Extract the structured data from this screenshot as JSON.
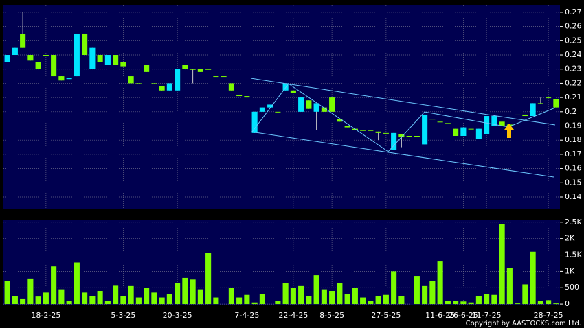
{
  "chart_data": {
    "type": "candlestick",
    "categories": [
      null,
      null,
      null,
      null,
      null,
      "18-2-25",
      null,
      null,
      null,
      null,
      null,
      null,
      null,
      null,
      null,
      "5-3-25",
      null,
      null,
      null,
      null,
      null,
      null,
      "20-3-25",
      null,
      null,
      null,
      null,
      null,
      null,
      null,
      null,
      "7-4-25",
      null,
      null,
      null,
      null,
      null,
      "22-4-25",
      null,
      null,
      null,
      null,
      "8-5-25",
      null,
      null,
      null,
      null,
      null,
      null,
      "27-5-25",
      null,
      null,
      null,
      null,
      null,
      null,
      "11-6-25",
      null,
      null,
      "26-6-25",
      null,
      null,
      "11-7-25",
      null,
      null,
      null,
      null,
      null,
      null,
      null,
      "28-7-25",
      null
    ],
    "open": [
      0.235,
      0.24,
      0.255,
      0.24,
      0.235,
      0.24,
      0.24,
      0.225,
      0.223,
      0.225,
      0.255,
      0.23,
      0.24,
      0.233,
      0.24,
      0.235,
      0.225,
      0.22,
      0.233,
      0.22,
      0.218,
      0.215,
      0.215,
      0.233,
      0.23,
      0.23,
      0.23,
      0.225,
      0.225,
      0.22,
      0.212,
      0.211,
      0.185,
      0.2,
      0.203,
      0.2,
      0.215,
      0.215,
      0.2,
      0.208,
      0.2,
      0.203,
      0.21,
      0.195,
      0.19,
      0.188,
      0.187,
      0.187,
      0.186,
      0.185,
      0.173,
      0.184,
      0.183,
      0.183,
      0.177,
      0.195,
      0.193,
      0.192,
      0.188,
      0.183,
      0.188,
      0.181,
      0.184,
      0.19,
      0.193,
      0.191,
      0.198,
      0.198,
      0.197,
      0.206,
      0.21,
      0.209
    ],
    "high": [
      0.24,
      0.245,
      0.27,
      0.24,
      0.235,
      0.24,
      0.24,
      0.225,
      0.224,
      0.255,
      0.255,
      0.245,
      0.24,
      0.24,
      0.24,
      0.235,
      0.225,
      0.22,
      0.233,
      0.22,
      0.218,
      0.22,
      0.23,
      0.233,
      0.23,
      0.23,
      0.23,
      0.225,
      0.225,
      0.22,
      0.212,
      0.211,
      0.2,
      0.203,
      0.205,
      0.2,
      0.22,
      0.215,
      0.21,
      0.208,
      0.206,
      0.203,
      0.21,
      0.195,
      0.19,
      0.188,
      0.187,
      0.187,
      0.186,
      0.185,
      0.185,
      0.184,
      0.183,
      0.183,
      0.198,
      0.195,
      0.193,
      0.192,
      0.188,
      0.189,
      0.188,
      0.188,
      0.197,
      0.197,
      0.193,
      0.191,
      0.198,
      0.198,
      0.206,
      0.21,
      0.21,
      0.209
    ],
    "low": [
      0.235,
      0.24,
      0.245,
      0.236,
      0.23,
      0.24,
      0.225,
      0.222,
      0.223,
      0.225,
      0.24,
      0.23,
      0.235,
      0.233,
      0.233,
      0.232,
      0.22,
      0.22,
      0.228,
      0.22,
      0.215,
      0.215,
      0.215,
      0.23,
      0.22,
      0.228,
      0.23,
      0.225,
      0.225,
      0.215,
      0.211,
      0.21,
      0.185,
      0.2,
      0.203,
      0.2,
      0.215,
      0.213,
      0.2,
      0.202,
      0.187,
      0.2,
      0.2,
      0.193,
      0.189,
      0.187,
      0.187,
      0.187,
      0.18,
      0.185,
      0.173,
      0.175,
      0.183,
      0.183,
      0.177,
      0.195,
      0.193,
      0.192,
      0.183,
      0.183,
      0.188,
      0.181,
      0.184,
      0.19,
      0.19,
      0.19,
      0.198,
      0.197,
      0.197,
      0.206,
      0.21,
      0.203
    ],
    "close": [
      0.24,
      0.245,
      0.245,
      0.236,
      0.23,
      0.24,
      0.225,
      0.222,
      0.224,
      0.255,
      0.24,
      0.245,
      0.235,
      0.24,
      0.233,
      0.232,
      0.22,
      0.22,
      0.228,
      0.22,
      0.215,
      0.22,
      0.23,
      0.23,
      0.23,
      0.228,
      0.23,
      0.225,
      0.225,
      0.215,
      0.211,
      0.21,
      0.2,
      0.203,
      0.205,
      0.2,
      0.22,
      0.213,
      0.21,
      0.202,
      0.206,
      0.2,
      0.2,
      0.193,
      0.189,
      0.187,
      0.187,
      0.187,
      0.185,
      0.185,
      0.185,
      0.182,
      0.183,
      0.183,
      0.198,
      0.195,
      0.193,
      0.192,
      0.183,
      0.189,
      0.188,
      0.188,
      0.197,
      0.197,
      0.19,
      0.19,
      0.198,
      0.197,
      0.206,
      0.206,
      0.21,
      0.203
    ],
    "volume": [
      700,
      250,
      150,
      780,
      230,
      350,
      1150,
      450,
      100,
      1270,
      350,
      250,
      400,
      100,
      560,
      250,
      550,
      200,
      500,
      350,
      200,
      300,
      650,
      800,
      750,
      450,
      1570,
      200,
      0,
      500,
      200,
      280,
      50,
      300,
      0,
      100,
      650,
      500,
      550,
      250,
      880,
      450,
      400,
      650,
      300,
      500,
      200,
      100,
      250,
      280,
      1000,
      250,
      0,
      860,
      550,
      700,
      1300,
      100,
      100,
      80,
      50,
      250,
      300,
      280,
      2450,
      1100,
      20,
      600,
      1600,
      100,
      120,
      20
    ],
    "up_color": "#00e5ff",
    "down_color": "#7cfc00",
    "volume_color": "#7cfc00",
    "ylim": [
      0.1313,
      0.2748
    ],
    "yticks": [
      0.14,
      0.15,
      0.16,
      0.17,
      0.18,
      0.19,
      0.2,
      0.21,
      0.22,
      0.23,
      0.24,
      0.25,
      0.26,
      0.27
    ],
    "y2lim": [
      -40,
      2580
    ],
    "y2ticks": [
      0,
      500,
      {
        "value": 1000,
        "label": "1K"
      },
      {
        "value": 1500,
        "label": "1.5K"
      },
      {
        "value": 2000,
        "label": "2K"
      },
      {
        "value": 2500,
        "label": "2.5K"
      }
    ],
    "grid": true,
    "copyright": "Copyright by AASTOCKS.com Ltd."
  }
}
